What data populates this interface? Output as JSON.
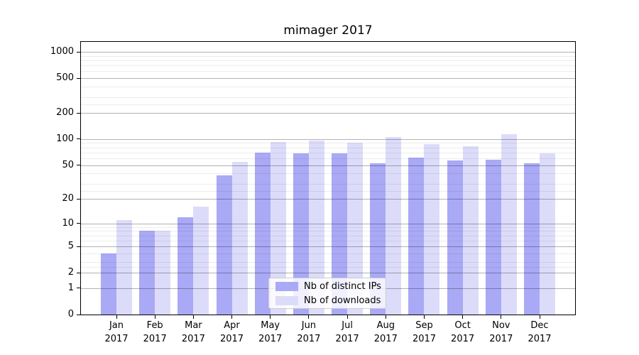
{
  "chart_data": {
    "type": "bar",
    "title": "mimager 2017",
    "categories": [
      "Jan 2017",
      "Feb 2017",
      "Mar 2017",
      "Apr 2017",
      "May 2017",
      "Jun 2017",
      "Jul 2017",
      "Aug 2017",
      "Sep 2017",
      "Oct 2017",
      "Nov 2017",
      "Dec 2017"
    ],
    "series": [
      {
        "name": "Nb of distinct IPs",
        "color": "#a9a9f6",
        "values": [
          4,
          8,
          12,
          38,
          70,
          69,
          68,
          52,
          61,
          57,
          58,
          52
        ]
      },
      {
        "name": "Nb of downloads",
        "color": "#dcdcfa",
        "values": [
          11,
          8,
          16,
          54,
          92,
          96,
          91,
          105,
          87,
          83,
          114,
          68
        ]
      }
    ],
    "yscale": "log1p",
    "yticks": [
      0,
      1,
      2,
      5,
      10,
      20,
      50,
      100,
      200,
      500,
      1000
    ],
    "minor_yticks": [
      2.5,
      3,
      4,
      6,
      7,
      8,
      9,
      25,
      30,
      40,
      60,
      70,
      80,
      90,
      250,
      300,
      400,
      600,
      700,
      800,
      900
    ],
    "ylim": [
      0,
      1300
    ],
    "grid": true,
    "legend_position": "lower center",
    "xlabel": "",
    "ylabel": ""
  }
}
